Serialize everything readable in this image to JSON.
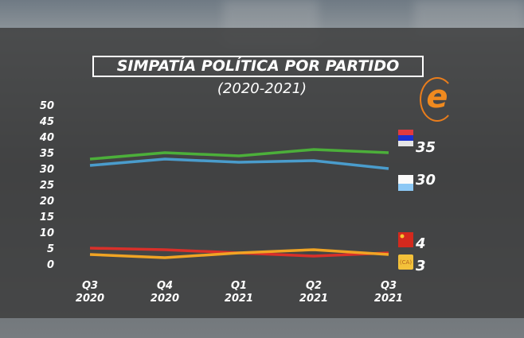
{
  "chart_data": {
    "type": "line",
    "title": "SIMPATÍA POLÍTICA POR PARTIDO",
    "subtitle": "(2020-2021)",
    "categories": [
      [
        "Q3",
        "2020"
      ],
      [
        "Q4",
        "2020"
      ],
      [
        "Q1",
        "2021"
      ],
      [
        "Q2",
        "2021"
      ],
      [
        "Q3",
        "2021"
      ]
    ],
    "ylim": [
      0,
      50
    ],
    "yticks": [
      0,
      5,
      10,
      15,
      20,
      25,
      30,
      35,
      40,
      45,
      50
    ],
    "grid": false,
    "series": [
      {
        "color": "#4caf3a",
        "flag": "serbia-flag",
        "end_label": "35",
        "values": [
          33,
          35,
          34,
          36,
          35
        ]
      },
      {
        "color": "#4a9ccc",
        "flag": "argentina-flag",
        "end_label": "30",
        "values": [
          31,
          33,
          32,
          32.5,
          30
        ]
      },
      {
        "color": "#d9302a",
        "flag": "china-flag",
        "end_label": "4",
        "values": [
          5,
          4.5,
          3.5,
          2.5,
          3.5
        ]
      },
      {
        "color": "#f0a424",
        "flag": "ca-logo",
        "end_label": "3",
        "values": [
          3,
          2,
          3.5,
          4.5,
          3
        ]
      }
    ]
  },
  "logo": {
    "letter": "e",
    "icon": "equipos-logo"
  }
}
